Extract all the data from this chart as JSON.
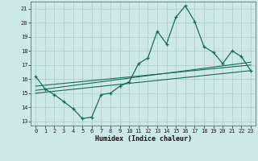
{
  "xlabel": "Humidex (Indice chaleur)",
  "ylabel": "",
  "bg_color": "#cce8e8",
  "grid_color": "#aacccc",
  "line_color": "#1a6b60",
  "xlim": [
    -0.5,
    23.5
  ],
  "ylim": [
    12.7,
    21.5
  ],
  "yticks": [
    13,
    14,
    15,
    16,
    17,
    18,
    19,
    20,
    21
  ],
  "xticks": [
    0,
    1,
    2,
    3,
    4,
    5,
    6,
    7,
    8,
    9,
    10,
    11,
    12,
    13,
    14,
    15,
    16,
    17,
    18,
    19,
    20,
    21,
    22,
    23
  ],
  "series": {
    "main": {
      "x": [
        0,
        1,
        2,
        3,
        4,
        5,
        6,
        7,
        8,
        9,
        10,
        11,
        12,
        13,
        14,
        15,
        16,
        17,
        18,
        19,
        20,
        21,
        22,
        23
      ],
      "y": [
        16.2,
        15.3,
        14.9,
        14.4,
        13.9,
        13.2,
        13.3,
        14.9,
        15.0,
        15.5,
        15.8,
        17.1,
        17.5,
        19.4,
        18.5,
        20.4,
        21.2,
        20.1,
        18.3,
        17.9,
        17.1,
        18.0,
        17.6,
        16.6
      ]
    },
    "trend1": {
      "x": [
        0,
        23
      ],
      "y": [
        15.0,
        16.6
      ]
    },
    "trend2": {
      "x": [
        0,
        23
      ],
      "y": [
        15.2,
        17.2
      ]
    },
    "trend3": {
      "x": [
        0,
        23
      ],
      "y": [
        15.5,
        17.0
      ]
    }
  }
}
